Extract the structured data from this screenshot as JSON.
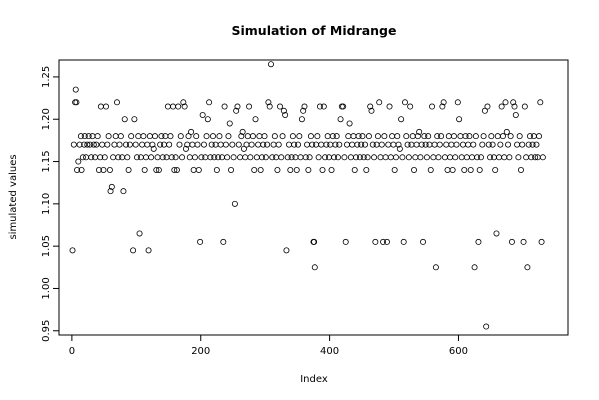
{
  "chart_data": {
    "type": "scatter",
    "title": "Simulation of Midrange",
    "xlabel": "Index",
    "ylabel": "simulated values",
    "xlim": [
      -20,
      770
    ],
    "ylim": [
      0.945,
      1.27
    ],
    "x_ticks": [
      0,
      200,
      400,
      600
    ],
    "x_tick_labels": [
      "0",
      "200",
      "400",
      "600"
    ],
    "y_ticks": [
      0.95,
      1.0,
      1.05,
      1.1,
      1.15,
      1.2,
      1.25
    ],
    "y_tick_labels": [
      "0.95",
      "1.00",
      "1.05",
      "1.10",
      "1.15",
      "1.20",
      "1.25"
    ],
    "marker": "open-circle",
    "point_color": "#000000",
    "grid": false,
    "legend": "none",
    "points": [
      [
        1,
        1.045
      ],
      [
        3,
        1.17
      ],
      [
        5,
        1.22
      ],
      [
        6,
        1.235
      ],
      [
        7,
        1.22
      ],
      [
        8,
        1.14
      ],
      [
        10,
        1.15
      ],
      [
        12,
        1.17
      ],
      [
        14,
        1.18
      ],
      [
        15,
        1.14
      ],
      [
        17,
        1.155
      ],
      [
        19,
        1.17
      ],
      [
        20,
        1.18
      ],
      [
        22,
        1.155
      ],
      [
        24,
        1.17
      ],
      [
        26,
        1.18
      ],
      [
        28,
        1.17
      ],
      [
        30,
        1.155
      ],
      [
        32,
        1.18
      ],
      [
        34,
        1.17
      ],
      [
        36,
        1.155
      ],
      [
        38,
        1.17
      ],
      [
        40,
        1.18
      ],
      [
        42,
        1.14
      ],
      [
        44,
        1.155
      ],
      [
        45,
        1.215
      ],
      [
        47,
        1.17
      ],
      [
        49,
        1.14
      ],
      [
        51,
        1.155
      ],
      [
        53,
        1.215
      ],
      [
        55,
        1.17
      ],
      [
        57,
        1.18
      ],
      [
        59,
        1.14
      ],
      [
        60,
        1.115
      ],
      [
        62,
        1.12
      ],
      [
        64,
        1.155
      ],
      [
        66,
        1.17
      ],
      [
        68,
        1.18
      ],
      [
        70,
        1.22
      ],
      [
        72,
        1.155
      ],
      [
        74,
        1.17
      ],
      [
        76,
        1.18
      ],
      [
        78,
        1.155
      ],
      [
        80,
        1.115
      ],
      [
        82,
        1.2
      ],
      [
        84,
        1.17
      ],
      [
        86,
        1.155
      ],
      [
        88,
        1.14
      ],
      [
        90,
        1.17
      ],
      [
        92,
        1.18
      ],
      [
        95,
        1.045
      ],
      [
        97,
        1.2
      ],
      [
        99,
        1.17
      ],
      [
        101,
        1.155
      ],
      [
        103,
        1.18
      ],
      [
        105,
        1.065
      ],
      [
        107,
        1.155
      ],
      [
        109,
        1.17
      ],
      [
        111,
        1.18
      ],
      [
        113,
        1.14
      ],
      [
        115,
        1.155
      ],
      [
        117,
        1.17
      ],
      [
        119,
        1.045
      ],
      [
        121,
        1.18
      ],
      [
        123,
        1.155
      ],
      [
        125,
        1.17
      ],
      [
        127,
        1.165
      ],
      [
        129,
        1.18
      ],
      [
        131,
        1.14
      ],
      [
        133,
        1.155
      ],
      [
        135,
        1.14
      ],
      [
        137,
        1.17
      ],
      [
        139,
        1.18
      ],
      [
        141,
        1.155
      ],
      [
        143,
        1.17
      ],
      [
        145,
        1.18
      ],
      [
        147,
        1.155
      ],
      [
        149,
        1.215
      ],
      [
        151,
        1.17
      ],
      [
        153,
        1.18
      ],
      [
        155,
        1.155
      ],
      [
        157,
        1.215
      ],
      [
        159,
        1.14
      ],
      [
        161,
        1.155
      ],
      [
        163,
        1.14
      ],
      [
        165,
        1.215
      ],
      [
        167,
        1.17
      ],
      [
        169,
        1.18
      ],
      [
        171,
        1.155
      ],
      [
        173,
        1.22
      ],
      [
        175,
        1.215
      ],
      [
        177,
        1.165
      ],
      [
        179,
        1.17
      ],
      [
        181,
        1.18
      ],
      [
        183,
        1.155
      ],
      [
        185,
        1.185
      ],
      [
        187,
        1.17
      ],
      [
        189,
        1.14
      ],
      [
        191,
        1.155
      ],
      [
        193,
        1.18
      ],
      [
        195,
        1.17
      ],
      [
        197,
        1.14
      ],
      [
        199,
        1.055
      ],
      [
        201,
        1.155
      ],
      [
        203,
        1.205
      ],
      [
        205,
        1.17
      ],
      [
        207,
        1.155
      ],
      [
        209,
        1.18
      ],
      [
        211,
        1.2
      ],
      [
        213,
        1.22
      ],
      [
        215,
        1.155
      ],
      [
        217,
        1.17
      ],
      [
        219,
        1.18
      ],
      [
        221,
        1.155
      ],
      [
        223,
        1.17
      ],
      [
        225,
        1.14
      ],
      [
        227,
        1.155
      ],
      [
        229,
        1.18
      ],
      [
        231,
        1.17
      ],
      [
        233,
        1.155
      ],
      [
        235,
        1.055
      ],
      [
        237,
        1.215
      ],
      [
        239,
        1.17
      ],
      [
        241,
        1.155
      ],
      [
        243,
        1.18
      ],
      [
        245,
        1.195
      ],
      [
        247,
        1.14
      ],
      [
        249,
        1.17
      ],
      [
        251,
        1.155
      ],
      [
        253,
        1.1
      ],
      [
        255,
        1.21
      ],
      [
        257,
        1.215
      ],
      [
        259,
        1.17
      ],
      [
        261,
        1.155
      ],
      [
        263,
        1.18
      ],
      [
        265,
        1.185
      ],
      [
        267,
        1.165
      ],
      [
        269,
        1.155
      ],
      [
        271,
        1.17
      ],
      [
        273,
        1.18
      ],
      [
        275,
        1.215
      ],
      [
        277,
        1.155
      ],
      [
        279,
        1.17
      ],
      [
        281,
        1.18
      ],
      [
        283,
        1.14
      ],
      [
        285,
        1.2
      ],
      [
        287,
        1.155
      ],
      [
        289,
        1.17
      ],
      [
        291,
        1.18
      ],
      [
        293,
        1.14
      ],
      [
        295,
        1.155
      ],
      [
        297,
        1.17
      ],
      [
        299,
        1.18
      ],
      [
        301,
        1.155
      ],
      [
        303,
        1.17
      ],
      [
        305,
        1.22
      ],
      [
        307,
        1.215
      ],
      [
        309,
        1.265
      ],
      [
        311,
        1.155
      ],
      [
        313,
        1.17
      ],
      [
        315,
        1.18
      ],
      [
        317,
        1.155
      ],
      [
        319,
        1.14
      ],
      [
        321,
        1.17
      ],
      [
        323,
        1.215
      ],
      [
        325,
        1.155
      ],
      [
        327,
        1.18
      ],
      [
        329,
        1.21
      ],
      [
        331,
        1.205
      ],
      [
        333,
        1.045
      ],
      [
        335,
        1.155
      ],
      [
        337,
        1.17
      ],
      [
        339,
        1.14
      ],
      [
        341,
        1.155
      ],
      [
        343,
        1.18
      ],
      [
        345,
        1.17
      ],
      [
        347,
        1.155
      ],
      [
        349,
        1.14
      ],
      [
        351,
        1.17
      ],
      [
        353,
        1.18
      ],
      [
        355,
        1.155
      ],
      [
        357,
        1.2
      ],
      [
        359,
        1.21
      ],
      [
        361,
        1.215
      ],
      [
        363,
        1.155
      ],
      [
        365,
        1.17
      ],
      [
        367,
        1.14
      ],
      [
        369,
        1.155
      ],
      [
        371,
        1.18
      ],
      [
        373,
        1.17
      ],
      [
        375,
        1.055
      ],
      [
        376,
        1.055
      ],
      [
        377,
        1.025
      ],
      [
        379,
        1.17
      ],
      [
        381,
        1.18
      ],
      [
        383,
        1.155
      ],
      [
        385,
        1.215
      ],
      [
        387,
        1.17
      ],
      [
        389,
        1.14
      ],
      [
        391,
        1.215
      ],
      [
        393,
        1.155
      ],
      [
        395,
        1.17
      ],
      [
        397,
        1.18
      ],
      [
        399,
        1.155
      ],
      [
        401,
        1.17
      ],
      [
        403,
        1.14
      ],
      [
        405,
        1.18
      ],
      [
        407,
        1.155
      ],
      [
        409,
        1.17
      ],
      [
        411,
        1.18
      ],
      [
        413,
        1.155
      ],
      [
        415,
        1.17
      ],
      [
        417,
        1.2
      ],
      [
        419,
        1.215
      ],
      [
        421,
        1.215
      ],
      [
        423,
        1.155
      ],
      [
        425,
        1.055
      ],
      [
        427,
        1.17
      ],
      [
        429,
        1.18
      ],
      [
        431,
        1.195
      ],
      [
        433,
        1.155
      ],
      [
        435,
        1.17
      ],
      [
        437,
        1.18
      ],
      [
        439,
        1.14
      ],
      [
        441,
        1.155
      ],
      [
        443,
        1.17
      ],
      [
        445,
        1.18
      ],
      [
        447,
        1.155
      ],
      [
        449,
        1.17
      ],
      [
        451,
        1.18
      ],
      [
        453,
        1.155
      ],
      [
        455,
        1.17
      ],
      [
        457,
        1.14
      ],
      [
        459,
        1.155
      ],
      [
        461,
        1.18
      ],
      [
        463,
        1.215
      ],
      [
        465,
        1.21
      ],
      [
        467,
        1.17
      ],
      [
        469,
        1.155
      ],
      [
        471,
        1.055
      ],
      [
        473,
        1.17
      ],
      [
        475,
        1.18
      ],
      [
        477,
        1.22
      ],
      [
        479,
        1.155
      ],
      [
        481,
        1.17
      ],
      [
        483,
        1.055
      ],
      [
        485,
        1.18
      ],
      [
        487,
        1.155
      ],
      [
        489,
        1.055
      ],
      [
        491,
        1.17
      ],
      [
        493,
        1.215
      ],
      [
        495,
        1.155
      ],
      [
        497,
        1.18
      ],
      [
        499,
        1.17
      ],
      [
        501,
        1.14
      ],
      [
        503,
        1.155
      ],
      [
        505,
        1.18
      ],
      [
        507,
        1.17
      ],
      [
        509,
        1.165
      ],
      [
        511,
        1.2
      ],
      [
        513,
        1.155
      ],
      [
        515,
        1.055
      ],
      [
        517,
        1.22
      ],
      [
        519,
        1.18
      ],
      [
        521,
        1.17
      ],
      [
        523,
        1.155
      ],
      [
        525,
        1.215
      ],
      [
        527,
        1.17
      ],
      [
        529,
        1.18
      ],
      [
        531,
        1.14
      ],
      [
        533,
        1.155
      ],
      [
        535,
        1.17
      ],
      [
        537,
        1.18
      ],
      [
        539,
        1.185
      ],
      [
        541,
        1.155
      ],
      [
        543,
        1.17
      ],
      [
        545,
        1.055
      ],
      [
        547,
        1.18
      ],
      [
        549,
        1.17
      ],
      [
        551,
        1.155
      ],
      [
        553,
        1.18
      ],
      [
        555,
        1.17
      ],
      [
        557,
        1.14
      ],
      [
        559,
        1.215
      ],
      [
        561,
        1.155
      ],
      [
        563,
        1.17
      ],
      [
        565,
        1.025
      ],
      [
        567,
        1.18
      ],
      [
        569,
        1.155
      ],
      [
        571,
        1.17
      ],
      [
        573,
        1.18
      ],
      [
        575,
        1.215
      ],
      [
        577,
        1.22
      ],
      [
        579,
        1.155
      ],
      [
        581,
        1.17
      ],
      [
        583,
        1.14
      ],
      [
        585,
        1.18
      ],
      [
        587,
        1.155
      ],
      [
        589,
        1.17
      ],
      [
        591,
        1.14
      ],
      [
        593,
        1.18
      ],
      [
        595,
        1.155
      ],
      [
        597,
        1.17
      ],
      [
        599,
        1.22
      ],
      [
        601,
        1.2
      ],
      [
        603,
        1.18
      ],
      [
        605,
        1.155
      ],
      [
        607,
        1.17
      ],
      [
        609,
        1.14
      ],
      [
        611,
        1.18
      ],
      [
        613,
        1.155
      ],
      [
        615,
        1.17
      ],
      [
        617,
        1.18
      ],
      [
        619,
        1.14
      ],
      [
        621,
        1.155
      ],
      [
        623,
        1.17
      ],
      [
        625,
        1.025
      ],
      [
        627,
        1.18
      ],
      [
        629,
        1.155
      ],
      [
        631,
        1.055
      ],
      [
        633,
        1.14
      ],
      [
        635,
        1.155
      ],
      [
        637,
        1.17
      ],
      [
        639,
        1.18
      ],
      [
        641,
        1.21
      ],
      [
        643,
        0.955
      ],
      [
        645,
        1.215
      ],
      [
        647,
        1.17
      ],
      [
        649,
        1.155
      ],
      [
        651,
        1.18
      ],
      [
        653,
        1.17
      ],
      [
        655,
        1.155
      ],
      [
        657,
        1.14
      ],
      [
        659,
        1.065
      ],
      [
        661,
        1.18
      ],
      [
        663,
        1.155
      ],
      [
        665,
        1.17
      ],
      [
        667,
        1.215
      ],
      [
        669,
        1.18
      ],
      [
        671,
        1.155
      ],
      [
        673,
        1.22
      ],
      [
        675,
        1.185
      ],
      [
        677,
        1.17
      ],
      [
        679,
        1.155
      ],
      [
        681,
        1.18
      ],
      [
        683,
        1.055
      ],
      [
        685,
        1.22
      ],
      [
        687,
        1.215
      ],
      [
        689,
        1.205
      ],
      [
        691,
        1.17
      ],
      [
        693,
        1.155
      ],
      [
        695,
        1.18
      ],
      [
        697,
        1.14
      ],
      [
        699,
        1.17
      ],
      [
        701,
        1.055
      ],
      [
        703,
        1.215
      ],
      [
        705,
        1.155
      ],
      [
        707,
        1.025
      ],
      [
        709,
        1.17
      ],
      [
        711,
        1.18
      ],
      [
        713,
        1.155
      ],
      [
        715,
        1.17
      ],
      [
        717,
        1.18
      ],
      [
        719,
        1.155
      ],
      [
        721,
        1.17
      ],
      [
        723,
        1.155
      ],
      [
        725,
        1.18
      ],
      [
        727,
        1.22
      ],
      [
        729,
        1.055
      ],
      [
        731,
        1.155
      ]
    ]
  }
}
